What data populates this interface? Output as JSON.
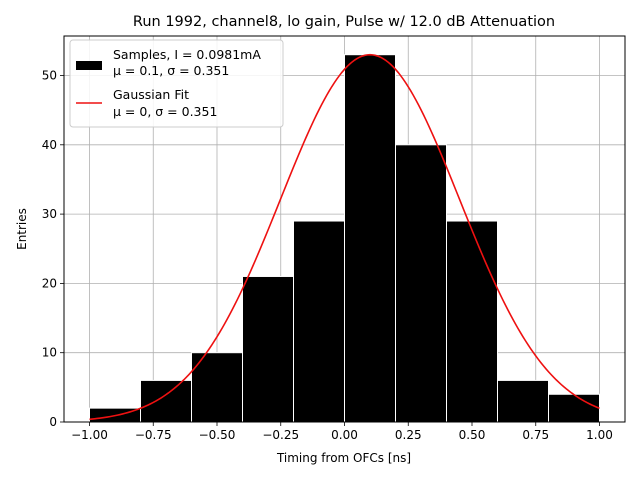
{
  "chart_data": {
    "type": "bar",
    "title": "Run 1992, channel8, lo gain, Pulse w/ 12.0 dB Attenuation",
    "xlabel": "Timing from OFCs [ns]",
    "ylabel": "Entries",
    "xlim": [
      -1.1,
      1.1
    ],
    "ylim": [
      0,
      55.7
    ],
    "grid": true,
    "legend_position": "upper-left",
    "xticks": [
      "−1.00",
      "−0.75",
      "−0.50",
      "−0.25",
      "0.00",
      "0.25",
      "0.50",
      "0.75",
      "1.00"
    ],
    "xtick_values": [
      -1.0,
      -0.75,
      -0.5,
      -0.25,
      0.0,
      0.25,
      0.5,
      0.75,
      1.0
    ],
    "yticks": [
      "0",
      "10",
      "20",
      "30",
      "40",
      "50"
    ],
    "ytick_values": [
      0,
      10,
      20,
      30,
      40,
      50
    ],
    "histogram": {
      "name_line1": "Samples, I = 0.0981mA",
      "name_line2": "μ = 0.1, σ = 0.351",
      "color": "#000000",
      "bin_edges": [
        -1.0,
        -0.8,
        -0.6,
        -0.4,
        -0.2,
        0.0,
        0.2,
        0.4,
        0.6,
        0.8,
        1.0
      ],
      "values": [
        2,
        6,
        10,
        21,
        29,
        53,
        40,
        29,
        6,
        4
      ]
    },
    "fit": {
      "name_line1": "Gaussian Fit",
      "name_line2": "μ = 0, σ = 0.351",
      "color": "#ee1111",
      "mu": 0.1,
      "sigma": 0.351,
      "amplitude": 53.0,
      "x_range": [
        -1.0,
        1.0
      ]
    }
  }
}
